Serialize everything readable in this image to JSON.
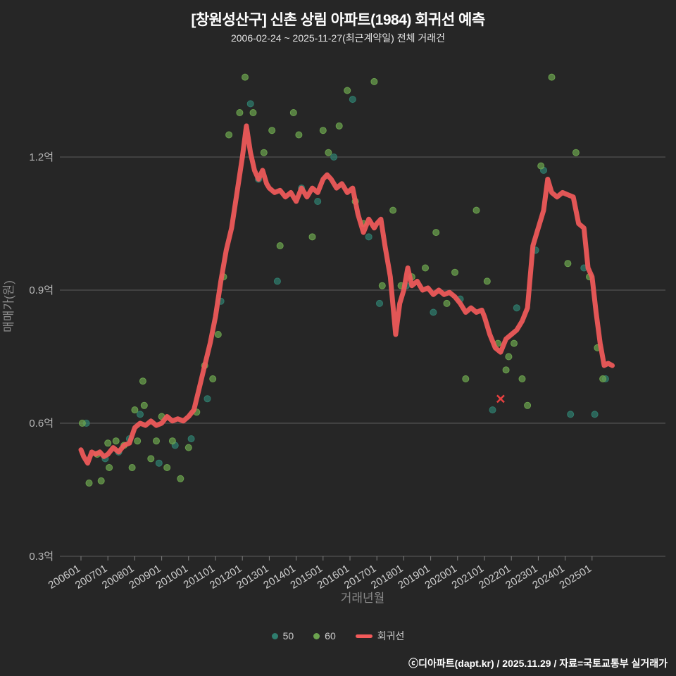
{
  "header": {
    "title": "[창원성산구] 신촌 상림 아파트(1984) 회귀선 예측",
    "subtitle": "2006-02-24 ~ 2025-11-27(최근계약일) 전체 거래건"
  },
  "footer": {
    "credit": "ⓒ디아파트(dapt.kr) / 2025.11.29 / 자료=국토교통부 실거래가"
  },
  "colors": {
    "background": "#262626",
    "gridline": "#5c5c5c",
    "tick_label": "#b8b8b8",
    "axis_title": "#8a8a8a",
    "series_50": "#2f7d6e",
    "series_60": "#6ba24e",
    "regression": "#f25a5a",
    "last_marker": "#e84040"
  },
  "legend": {
    "items": [
      {
        "label": "50",
        "color": "#2f7d6e",
        "type": "dot"
      },
      {
        "label": "60",
        "color": "#6ba24e",
        "type": "dot"
      },
      {
        "label": "회귀선",
        "color": "#f25a5a",
        "type": "line"
      }
    ]
  },
  "chart_data": {
    "type": "scatter",
    "title": "[창원성산구] 신촌 상림 아파트(1984) 회귀선 예측",
    "xlabel": "거래년월",
    "ylabel": "매매가(원)",
    "ylim": [
      0.3,
      1.4
    ],
    "grid": true,
    "legend_position": "bottom",
    "y_ticks": [
      {
        "value": 0.3,
        "label": "0.3억"
      },
      {
        "value": 0.6,
        "label": "0.6억"
      },
      {
        "value": 0.9,
        "label": "0.9억"
      },
      {
        "value": 1.2,
        "label": "1.2억"
      }
    ],
    "x_ticks": [
      {
        "year": 2006,
        "label": "200601"
      },
      {
        "year": 2007,
        "label": "200701"
      },
      {
        "year": 2008,
        "label": "200801"
      },
      {
        "year": 2009,
        "label": "200901"
      },
      {
        "year": 2010,
        "label": "201001"
      },
      {
        "year": 2011,
        "label": "201101"
      },
      {
        "year": 2012,
        "label": "201201"
      },
      {
        "year": 2013,
        "label": "201301"
      },
      {
        "year": 2014,
        "label": "201401"
      },
      {
        "year": 2015,
        "label": "201501"
      },
      {
        "year": 2016,
        "label": "201601"
      },
      {
        "year": 2017,
        "label": "201701"
      },
      {
        "year": 2018,
        "label": "201801"
      },
      {
        "year": 2019,
        "label": "201901"
      },
      {
        "year": 2020,
        "label": "202001"
      },
      {
        "year": 2021,
        "label": "202101"
      },
      {
        "year": 2022,
        "label": "202201"
      },
      {
        "year": 2023,
        "label": "202301"
      },
      {
        "year": 2024,
        "label": "202401"
      },
      {
        "year": 2025,
        "label": "202501"
      }
    ],
    "series": [
      {
        "name": "50",
        "type": "scatter",
        "color": "#2f7d6e",
        "points": [
          [
            2006.2,
            0.6
          ],
          [
            2006.9,
            0.52
          ],
          [
            2007.4,
            0.535
          ],
          [
            2007.8,
            0.565
          ],
          [
            2008.2,
            0.62
          ],
          [
            2008.9,
            0.51
          ],
          [
            2009.5,
            0.55
          ],
          [
            2010.1,
            0.565
          ],
          [
            2010.7,
            0.655
          ],
          [
            2011.2,
            0.875
          ],
          [
            2012.3,
            1.32
          ],
          [
            2012.6,
            1.15
          ],
          [
            2013.3,
            0.92
          ],
          [
            2014.2,
            1.13
          ],
          [
            2014.8,
            1.1
          ],
          [
            2015.4,
            1.2
          ],
          [
            2016.1,
            1.33
          ],
          [
            2016.7,
            1.02
          ],
          [
            2017.1,
            0.87
          ],
          [
            2018.1,
            0.91
          ],
          [
            2019.1,
            0.85
          ],
          [
            2020.1,
            0.88
          ],
          [
            2021.3,
            0.63
          ],
          [
            2022.2,
            0.86
          ],
          [
            2022.9,
            0.99
          ],
          [
            2023.2,
            1.17
          ],
          [
            2024.2,
            0.62
          ],
          [
            2024.7,
            0.95
          ],
          [
            2025.1,
            0.62
          ],
          [
            2025.5,
            0.7
          ]
        ]
      },
      {
        "name": "60",
        "type": "scatter",
        "color": "#6ba24e",
        "points": [
          [
            2006.05,
            0.6
          ],
          [
            2006.3,
            0.465
          ],
          [
            2006.6,
            0.53
          ],
          [
            2006.75,
            0.47
          ],
          [
            2007.0,
            0.555
          ],
          [
            2007.05,
            0.5
          ],
          [
            2007.3,
            0.56
          ],
          [
            2007.6,
            0.55
          ],
          [
            2007.9,
            0.5
          ],
          [
            2008.0,
            0.63
          ],
          [
            2008.1,
            0.56
          ],
          [
            2008.3,
            0.695
          ],
          [
            2008.35,
            0.64
          ],
          [
            2008.6,
            0.52
          ],
          [
            2008.8,
            0.56
          ],
          [
            2009.0,
            0.615
          ],
          [
            2009.2,
            0.5
          ],
          [
            2009.4,
            0.56
          ],
          [
            2009.7,
            0.475
          ],
          [
            2010.0,
            0.545
          ],
          [
            2010.3,
            0.625
          ],
          [
            2010.6,
            0.73
          ],
          [
            2010.9,
            0.7
          ],
          [
            2011.1,
            0.8
          ],
          [
            2011.3,
            0.93
          ],
          [
            2011.5,
            1.25
          ],
          [
            2011.9,
            1.3
          ],
          [
            2012.1,
            1.38
          ],
          [
            2012.4,
            1.3
          ],
          [
            2012.8,
            1.21
          ],
          [
            2013.1,
            1.26
          ],
          [
            2013.4,
            1.0
          ],
          [
            2013.9,
            1.3
          ],
          [
            2014.1,
            1.25
          ],
          [
            2014.6,
            1.02
          ],
          [
            2015.0,
            1.26
          ],
          [
            2015.2,
            1.21
          ],
          [
            2015.6,
            1.27
          ],
          [
            2015.9,
            1.35
          ],
          [
            2016.2,
            1.1
          ],
          [
            2016.5,
            1.05
          ],
          [
            2016.9,
            1.37
          ],
          [
            2017.2,
            0.91
          ],
          [
            2017.6,
            1.08
          ],
          [
            2017.9,
            0.91
          ],
          [
            2018.3,
            0.93
          ],
          [
            2018.8,
            0.95
          ],
          [
            2019.2,
            1.03
          ],
          [
            2019.6,
            0.87
          ],
          [
            2019.9,
            0.94
          ],
          [
            2020.3,
            0.7
          ],
          [
            2020.7,
            1.08
          ],
          [
            2021.1,
            0.92
          ],
          [
            2021.5,
            0.78
          ],
          [
            2021.8,
            0.72
          ],
          [
            2021.9,
            0.75
          ],
          [
            2022.1,
            0.78
          ],
          [
            2022.4,
            0.7
          ],
          [
            2022.6,
            0.64
          ],
          [
            2023.1,
            1.18
          ],
          [
            2023.5,
            1.38
          ],
          [
            2024.1,
            0.96
          ],
          [
            2024.4,
            1.21
          ],
          [
            2024.9,
            0.93
          ],
          [
            2025.2,
            0.77
          ],
          [
            2025.4,
            0.7
          ]
        ]
      },
      {
        "name": "회귀선",
        "type": "line",
        "color": "#f25a5a",
        "points": [
          [
            2006.0,
            0.54
          ],
          [
            2006.1,
            0.525
          ],
          [
            2006.25,
            0.51
          ],
          [
            2006.4,
            0.535
          ],
          [
            2006.55,
            0.53
          ],
          [
            2006.7,
            0.535
          ],
          [
            2006.85,
            0.525
          ],
          [
            2007.0,
            0.53
          ],
          [
            2007.2,
            0.545
          ],
          [
            2007.4,
            0.535
          ],
          [
            2007.6,
            0.55
          ],
          [
            2007.8,
            0.555
          ],
          [
            2008.0,
            0.59
          ],
          [
            2008.2,
            0.6
          ],
          [
            2008.4,
            0.595
          ],
          [
            2008.6,
            0.605
          ],
          [
            2008.8,
            0.595
          ],
          [
            2009.0,
            0.6
          ],
          [
            2009.2,
            0.615
          ],
          [
            2009.4,
            0.605
          ],
          [
            2009.6,
            0.61
          ],
          [
            2009.8,
            0.605
          ],
          [
            2010.0,
            0.615
          ],
          [
            2010.2,
            0.63
          ],
          [
            2010.4,
            0.68
          ],
          [
            2010.6,
            0.73
          ],
          [
            2010.8,
            0.78
          ],
          [
            2011.0,
            0.84
          ],
          [
            2011.2,
            0.92
          ],
          [
            2011.4,
            0.99
          ],
          [
            2011.6,
            1.04
          ],
          [
            2011.8,
            1.12
          ],
          [
            2012.0,
            1.2
          ],
          [
            2012.15,
            1.27
          ],
          [
            2012.3,
            1.21
          ],
          [
            2012.45,
            1.17
          ],
          [
            2012.6,
            1.15
          ],
          [
            2012.75,
            1.17
          ],
          [
            2012.9,
            1.14
          ],
          [
            2013.0,
            1.13
          ],
          [
            2013.2,
            1.12
          ],
          [
            2013.4,
            1.125
          ],
          [
            2013.6,
            1.11
          ],
          [
            2013.8,
            1.12
          ],
          [
            2014.0,
            1.1
          ],
          [
            2014.2,
            1.13
          ],
          [
            2014.4,
            1.11
          ],
          [
            2014.6,
            1.13
          ],
          [
            2014.8,
            1.12
          ],
          [
            2015.0,
            1.15
          ],
          [
            2015.15,
            1.16
          ],
          [
            2015.3,
            1.15
          ],
          [
            2015.5,
            1.13
          ],
          [
            2015.7,
            1.14
          ],
          [
            2015.9,
            1.12
          ],
          [
            2016.1,
            1.13
          ],
          [
            2016.3,
            1.07
          ],
          [
            2016.5,
            1.03
          ],
          [
            2016.7,
            1.06
          ],
          [
            2016.9,
            1.04
          ],
          [
            2017.0,
            1.05
          ],
          [
            2017.15,
            1.06
          ],
          [
            2017.3,
            1.0
          ],
          [
            2017.5,
            0.93
          ],
          [
            2017.7,
            0.8
          ],
          [
            2017.85,
            0.87
          ],
          [
            2018.0,
            0.9
          ],
          [
            2018.15,
            0.95
          ],
          [
            2018.3,
            0.91
          ],
          [
            2018.5,
            0.92
          ],
          [
            2018.7,
            0.9
          ],
          [
            2018.9,
            0.905
          ],
          [
            2019.1,
            0.89
          ],
          [
            2019.3,
            0.9
          ],
          [
            2019.5,
            0.89
          ],
          [
            2019.7,
            0.895
          ],
          [
            2019.9,
            0.885
          ],
          [
            2020.1,
            0.87
          ],
          [
            2020.3,
            0.85
          ],
          [
            2020.5,
            0.86
          ],
          [
            2020.7,
            0.85
          ],
          [
            2020.9,
            0.855
          ],
          [
            2021.0,
            0.84
          ],
          [
            2021.2,
            0.8
          ],
          [
            2021.4,
            0.77
          ],
          [
            2021.6,
            0.76
          ],
          [
            2021.8,
            0.79
          ],
          [
            2022.0,
            0.8
          ],
          [
            2022.2,
            0.81
          ],
          [
            2022.4,
            0.83
          ],
          [
            2022.6,
            0.86
          ],
          [
            2022.8,
            1.0
          ],
          [
            2023.0,
            1.04
          ],
          [
            2023.2,
            1.08
          ],
          [
            2023.35,
            1.15
          ],
          [
            2023.5,
            1.12
          ],
          [
            2023.7,
            1.11
          ],
          [
            2023.9,
            1.12
          ],
          [
            2024.1,
            1.115
          ],
          [
            2024.3,
            1.11
          ],
          [
            2024.5,
            1.05
          ],
          [
            2024.7,
            1.04
          ],
          [
            2024.85,
            0.95
          ],
          [
            2025.0,
            0.93
          ],
          [
            2025.15,
            0.85
          ],
          [
            2025.3,
            0.78
          ],
          [
            2025.45,
            0.73
          ],
          [
            2025.6,
            0.735
          ],
          [
            2025.75,
            0.73
          ]
        ]
      }
    ],
    "last_marker": {
      "x": 2021.6,
      "y": 0.655,
      "symbol": "x",
      "color": "#e84040"
    }
  }
}
